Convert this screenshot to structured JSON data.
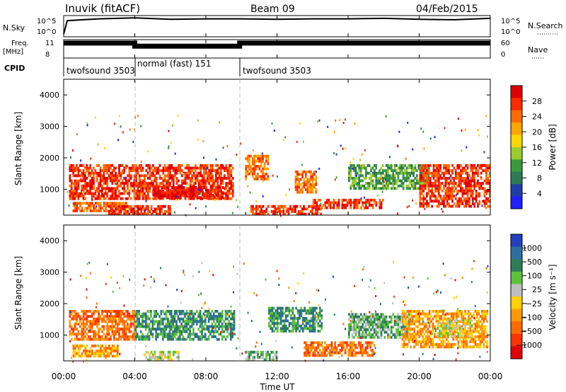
{
  "header": {
    "station": "Inuvik (fitACF)",
    "beam": "Beam 09",
    "date": "04/Feb/2015"
  },
  "panel_labels": {
    "nsky": "N.Sky",
    "freq": "Freq.",
    "freq_unit": "[MHz]",
    "cpid": "CPID",
    "nsearch": "N.Search",
    "nave": "Nave"
  },
  "colors": {
    "power": [
      "#2020ff",
      "#1e3fa8",
      "#2c7b55",
      "#3a9a3a",
      "#9acd32",
      "#ffd700",
      "#ffa500",
      "#ff6a00",
      "#ff2a00",
      "#e00000"
    ],
    "velocity": [
      "#2040c0",
      "#2c6fa0",
      "#2e7d5a",
      "#5cc23a",
      "#bfbfbf",
      "#ffd000",
      "#ff9900",
      "#ff6a00",
      "#ff3300",
      "#e00000"
    ]
  },
  "chart_data": [
    {
      "type": "line",
      "name": "sky-noise",
      "ylabel": "N.Sky",
      "yticks": [
        "10^5",
        "10^0"
      ],
      "right_label": "N.Search",
      "right_yticks": [
        "10^5",
        "10^0"
      ],
      "series": [
        {
          "x": [
            0,
            0.2,
            2,
            4,
            6,
            8,
            10,
            12,
            14,
            16,
            18,
            20,
            22,
            24
          ],
          "y": [
            0.3,
            3.2,
            3.6,
            3.8,
            3.5,
            3.6,
            3.6,
            3.5,
            3.6,
            3.6,
            3.7,
            3.5,
            3.4,
            3.7
          ]
        }
      ]
    },
    {
      "type": "line",
      "name": "frequency",
      "ylabel": "Freq. [MHz]",
      "yticks": [
        "11",
        "8"
      ],
      "right_label": "Nave",
      "right_yticks": [
        "60",
        "0"
      ],
      "series": [
        {
          "x": [
            0,
            4,
            4,
            9.9,
            9.9,
            24
          ],
          "y": [
            10.6,
            10.6,
            10.0,
            10.0,
            10.6,
            10.6
          ]
        }
      ],
      "cpid": [
        {
          "label": "twofsound 3503",
          "start": 0,
          "end": 4
        },
        {
          "label": "normal (fast) 151",
          "start": 4,
          "end": 9.9
        },
        {
          "label": "twofsound 3503",
          "start": 9.9,
          "end": 24
        }
      ]
    },
    {
      "type": "heatmap",
      "name": "power",
      "ylabel": "Slant Range [km]",
      "yticks": [
        "1000",
        "2000",
        "3000",
        "4000"
      ],
      "ylim": [
        180,
        4500
      ],
      "colorbar_label": "Power [dB]",
      "colorbar_ticks": [
        "4",
        "8",
        "12",
        "16",
        "20",
        "24",
        "28"
      ],
      "regions": [
        {
          "t0": 0.3,
          "t1": 9.5,
          "r0": 700,
          "r1": 1800,
          "level": 8
        },
        {
          "t0": 0.5,
          "t1": 3.5,
          "r0": 300,
          "r1": 600,
          "level": 7
        },
        {
          "t0": 2.5,
          "t1": 6.0,
          "r0": 250,
          "r1": 500,
          "level": 8
        },
        {
          "t0": 5.0,
          "t1": 9.0,
          "r0": 700,
          "r1": 1100,
          "level": 9
        },
        {
          "t0": 10.2,
          "t1": 11.5,
          "r0": 1300,
          "r1": 2100,
          "level": 7
        },
        {
          "t0": 10.5,
          "t1": 14.5,
          "r0": 250,
          "r1": 500,
          "level": 8
        },
        {
          "t0": 13.0,
          "t1": 14.2,
          "r0": 900,
          "r1": 1600,
          "level": 7
        },
        {
          "t0": 14.0,
          "t1": 18.0,
          "r0": 400,
          "r1": 700,
          "level": 8
        },
        {
          "t0": 16.0,
          "t1": 20.5,
          "r0": 1000,
          "r1": 1800,
          "level": 3
        },
        {
          "t0": 20.0,
          "t1": 24.0,
          "r0": 500,
          "r1": 1800,
          "level": 8
        }
      ]
    },
    {
      "type": "heatmap",
      "name": "velocity",
      "ylabel": "Slant Range [km]",
      "yticks": [
        "1000",
        "2000",
        "3000",
        "4000"
      ],
      "ylim": [
        180,
        4500
      ],
      "colorbar_label": "Velocity [m s⁻¹]",
      "colorbar_ticks": [
        "1000",
        "500",
        "100",
        "25",
        "−25",
        "−100",
        "−500",
        "−1000"
      ],
      "xlabel": "Time UT",
      "xticks": [
        "00:00",
        "04:00",
        "08:00",
        "12:00",
        "16:00",
        "20:00",
        "00:00"
      ],
      "regions": [
        {
          "t0": 0.3,
          "t1": 4.0,
          "r0": 900,
          "r1": 1800,
          "level": 7
        },
        {
          "t0": 4.0,
          "t1": 9.6,
          "r0": 900,
          "r1": 1800,
          "level": 2
        },
        {
          "t0": 0.5,
          "t1": 3.0,
          "r0": 300,
          "r1": 700,
          "level": 6
        },
        {
          "t0": 4.5,
          "t1": 6.5,
          "r0": 250,
          "r1": 500,
          "level": 4
        },
        {
          "t0": 10.2,
          "t1": 12.0,
          "r0": 250,
          "r1": 500,
          "level": 3
        },
        {
          "t0": 11.5,
          "t1": 14.5,
          "r0": 1100,
          "r1": 1900,
          "level": 2
        },
        {
          "t0": 13.5,
          "t1": 17.5,
          "r0": 350,
          "r1": 800,
          "level": 7
        },
        {
          "t0": 16.0,
          "t1": 19.5,
          "r0": 900,
          "r1": 1700,
          "level": 3
        },
        {
          "t0": 19.0,
          "t1": 23.8,
          "r0": 600,
          "r1": 1800,
          "level": 6
        },
        {
          "t0": 21.0,
          "t1": 23.0,
          "r0": 1000,
          "r1": 1500,
          "level": 4
        }
      ]
    }
  ]
}
